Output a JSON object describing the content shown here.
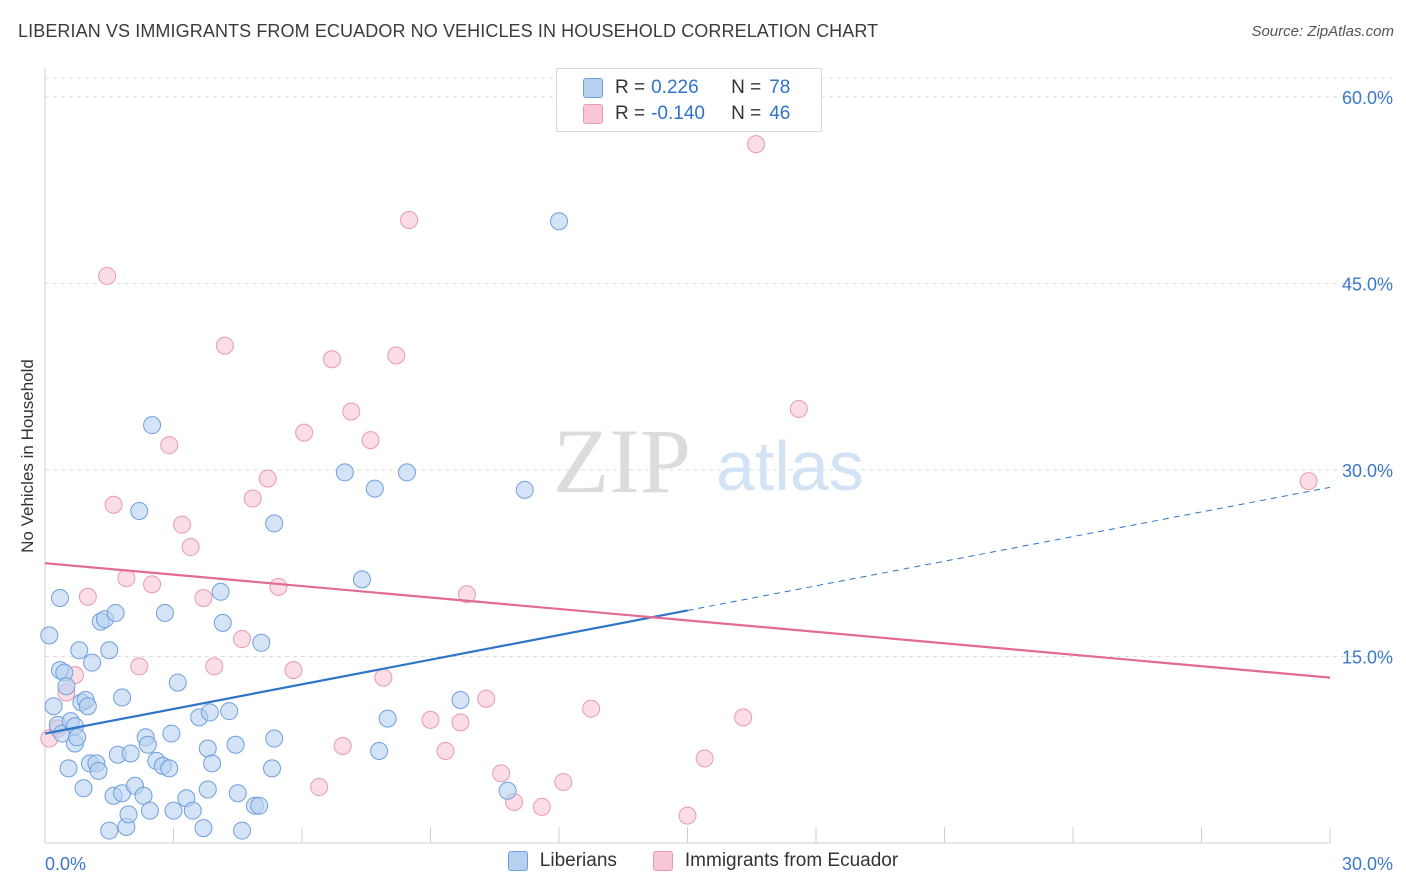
{
  "title": "LIBERIAN VS IMMIGRANTS FROM ECUADOR NO VEHICLES IN HOUSEHOLD CORRELATION CHART",
  "source": "Source: ZipAtlas.com",
  "watermark": {
    "zip": "ZIP",
    "atlas": "atlas"
  },
  "legend": {
    "series1": {
      "r_label": "R =",
      "r_value": "0.226",
      "n_label": "N =",
      "n_value": "78"
    },
    "series2": {
      "r_label": "R =",
      "r_value": "-0.140",
      "n_label": "N =",
      "n_value": "46"
    }
  },
  "bottom_legend": {
    "series1": "Liberians",
    "series2": "Immigrants from Ecuador"
  },
  "colors": {
    "series1_fill": "#b8d0f0",
    "series1_stroke": "#6f9fdc",
    "series1_line": "#2f74c9",
    "series2_fill": "#f7c7d6",
    "series2_stroke": "#e89ab2",
    "series2_line": "#e26a94",
    "tick_text": "#3a78c8",
    "grid": "#dddddd"
  },
  "chart_data": {
    "type": "scatter",
    "title": "LIBERIAN VS IMMIGRANTS FROM ECUADOR NO VEHICLES IN HOUSEHOLD CORRELATION CHART",
    "xlabel": "",
    "ylabel": "No Vehicles in Household",
    "xlim": [
      0,
      30
    ],
    "ylim": [
      0,
      62
    ],
    "x_tick_labels": [
      "0.0%",
      "30.0%"
    ],
    "y_ticks": [
      15,
      30,
      45,
      60
    ],
    "y_tick_labels": [
      "15.0%",
      "30.0%",
      "45.0%",
      "60.0%"
    ],
    "grid": "horizontal dashed",
    "legend_position": "top-center",
    "series": [
      {
        "name": "Liberians",
        "r": 0.226,
        "n": 78,
        "trend": {
          "x0": 0,
          "y0": 8.8,
          "x1": 15,
          "y1": 18.7,
          "dashed_to_x": 30,
          "dashed_to_y": 28.6
        },
        "points": [
          [
            0.1,
            16.7
          ],
          [
            0.2,
            11.0
          ],
          [
            0.3,
            9.5
          ],
          [
            0.35,
            13.9
          ],
          [
            0.35,
            19.7
          ],
          [
            0.4,
            8.8
          ],
          [
            0.45,
            13.7
          ],
          [
            0.5,
            12.6
          ],
          [
            0.55,
            6.0
          ],
          [
            0.6,
            9.8
          ],
          [
            0.7,
            9.4
          ],
          [
            0.7,
            8.0
          ],
          [
            0.75,
            8.5
          ],
          [
            0.8,
            15.5
          ],
          [
            0.85,
            11.3
          ],
          [
            0.9,
            4.4
          ],
          [
            0.95,
            11.5
          ],
          [
            1.0,
            11.0
          ],
          [
            1.05,
            6.4
          ],
          [
            1.1,
            14.5
          ],
          [
            1.2,
            6.4
          ],
          [
            1.25,
            5.8
          ],
          [
            1.3,
            17.8
          ],
          [
            1.4,
            18.0
          ],
          [
            1.5,
            15.5
          ],
          [
            1.5,
            1.0
          ],
          [
            1.6,
            3.8
          ],
          [
            1.65,
            18.5
          ],
          [
            1.7,
            7.1
          ],
          [
            1.8,
            11.7
          ],
          [
            1.8,
            4.0
          ],
          [
            1.9,
            1.3
          ],
          [
            1.95,
            2.3
          ],
          [
            2.0,
            7.2
          ],
          [
            2.1,
            4.6
          ],
          [
            2.2,
            26.7
          ],
          [
            2.3,
            3.8
          ],
          [
            2.35,
            8.5
          ],
          [
            2.4,
            7.9
          ],
          [
            2.45,
            2.6
          ],
          [
            2.5,
            33.6
          ],
          [
            2.6,
            6.6
          ],
          [
            2.75,
            6.2
          ],
          [
            2.8,
            18.5
          ],
          [
            2.9,
            6.0
          ],
          [
            2.95,
            8.8
          ],
          [
            3.0,
            2.6
          ],
          [
            3.1,
            12.9
          ],
          [
            3.3,
            3.6
          ],
          [
            3.45,
            2.6
          ],
          [
            3.6,
            10.1
          ],
          [
            3.7,
            1.2
          ],
          [
            3.8,
            4.3
          ],
          [
            3.8,
            7.6
          ],
          [
            3.85,
            10.5
          ],
          [
            3.9,
            6.4
          ],
          [
            4.1,
            20.2
          ],
          [
            4.15,
            17.7
          ],
          [
            4.3,
            10.6
          ],
          [
            4.45,
            7.9
          ],
          [
            4.5,
            4.0
          ],
          [
            4.6,
            1.0
          ],
          [
            4.9,
            3.0
          ],
          [
            5.0,
            3.0
          ],
          [
            5.05,
            16.1
          ],
          [
            5.3,
            6.0
          ],
          [
            5.35,
            8.4
          ],
          [
            5.35,
            25.7
          ],
          [
            7.0,
            29.8
          ],
          [
            7.4,
            21.2
          ],
          [
            7.7,
            28.5
          ],
          [
            7.8,
            7.4
          ],
          [
            8.0,
            10.0
          ],
          [
            8.45,
            29.8
          ],
          [
            9.7,
            11.5
          ],
          [
            10.8,
            4.2
          ],
          [
            11.2,
            28.4
          ],
          [
            12.0,
            50.0
          ]
        ]
      },
      {
        "name": "Immigrants from Ecuador",
        "r": -0.14,
        "n": 46,
        "trend": {
          "x0": 0,
          "y0": 22.5,
          "x1": 30,
          "y1": 13.3
        },
        "points": [
          [
            0.1,
            8.4
          ],
          [
            0.3,
            9.2
          ],
          [
            0.5,
            12.1
          ],
          [
            0.7,
            13.5
          ],
          [
            1.0,
            19.8
          ],
          [
            1.45,
            45.6
          ],
          [
            1.6,
            27.2
          ],
          [
            1.9,
            21.3
          ],
          [
            2.2,
            14.2
          ],
          [
            2.5,
            20.8
          ],
          [
            2.9,
            32.0
          ],
          [
            3.2,
            25.6
          ],
          [
            3.4,
            23.8
          ],
          [
            3.7,
            19.7
          ],
          [
            3.95,
            14.2
          ],
          [
            4.2,
            40.0
          ],
          [
            4.6,
            16.4
          ],
          [
            4.85,
            27.7
          ],
          [
            5.2,
            29.3
          ],
          [
            5.45,
            20.6
          ],
          [
            5.8,
            13.9
          ],
          [
            6.05,
            33.0
          ],
          [
            6.4,
            4.5
          ],
          [
            6.7,
            38.9
          ],
          [
            6.95,
            7.8
          ],
          [
            7.15,
            34.7
          ],
          [
            7.6,
            32.4
          ],
          [
            7.9,
            13.3
          ],
          [
            8.2,
            39.2
          ],
          [
            8.5,
            50.1
          ],
          [
            9.0,
            9.9
          ],
          [
            9.35,
            7.4
          ],
          [
            9.7,
            9.7
          ],
          [
            9.85,
            20.0
          ],
          [
            10.3,
            11.6
          ],
          [
            10.65,
            5.6
          ],
          [
            10.95,
            3.3
          ],
          [
            11.6,
            2.9
          ],
          [
            12.1,
            4.9
          ],
          [
            12.75,
            10.8
          ],
          [
            15.0,
            2.2
          ],
          [
            15.4,
            6.8
          ],
          [
            16.3,
            10.1
          ],
          [
            16.6,
            56.2
          ],
          [
            17.6,
            34.9
          ],
          [
            29.5,
            29.1
          ]
        ]
      }
    ]
  }
}
